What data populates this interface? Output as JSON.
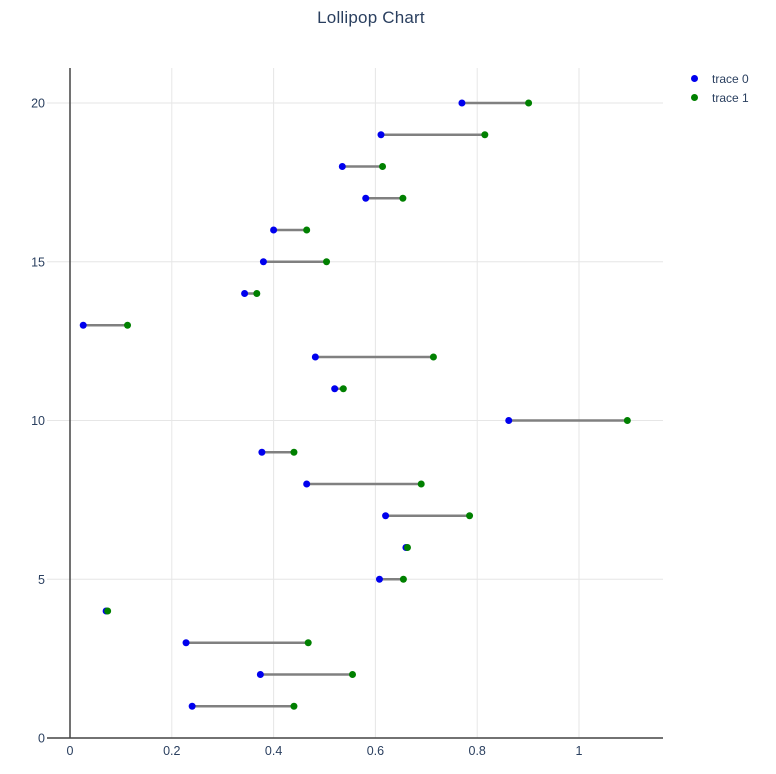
{
  "chart_data": {
    "type": "scatter",
    "subtype": "lollipop-horizontal",
    "title": "Lollipop Chart",
    "orientation": "horizontal",
    "grid": true,
    "legend_position": "top-right",
    "background": "#ffffff",
    "grid_color": "#e6e6e6",
    "axis_line_color": "#444444",
    "text_color": "#2a3f5f",
    "connector_color": "#808080",
    "xlim": [
      0,
      1.165
    ],
    "ylim": [
      0,
      21.1
    ],
    "x_tick_values": [
      0,
      0.2,
      0.4,
      0.6,
      0.8,
      1
    ],
    "x_tick_labels": [
      "0",
      "0.2",
      "0.4",
      "0.6",
      "0.8",
      "1"
    ],
    "y_tick_values": [
      0,
      5,
      10,
      15,
      20
    ],
    "y_tick_labels": [
      "0",
      "5",
      "10",
      "15",
      "20"
    ],
    "categories_y": [
      1,
      2,
      3,
      4,
      5,
      6,
      7,
      8,
      9,
      10,
      11,
      12,
      13,
      14,
      15,
      16,
      17,
      18,
      19,
      20
    ],
    "series": [
      {
        "name": "trace 0",
        "color": "#0000ee",
        "values": [
          0.24,
          0.374,
          0.228,
          0.071,
          0.608,
          0.66,
          0.62,
          0.465,
          0.377,
          0.862,
          0.52,
          0.482,
          0.026,
          0.343,
          0.38,
          0.4,
          0.581,
          0.535,
          0.611,
          0.77
        ]
      },
      {
        "name": "trace 1",
        "color": "#008000",
        "values": [
          0.44,
          0.555,
          0.468,
          0.074,
          0.655,
          0.663,
          0.785,
          0.69,
          0.44,
          1.095,
          0.537,
          0.714,
          0.113,
          0.367,
          0.504,
          0.465,
          0.654,
          0.614,
          0.815,
          0.901
        ]
      }
    ]
  }
}
